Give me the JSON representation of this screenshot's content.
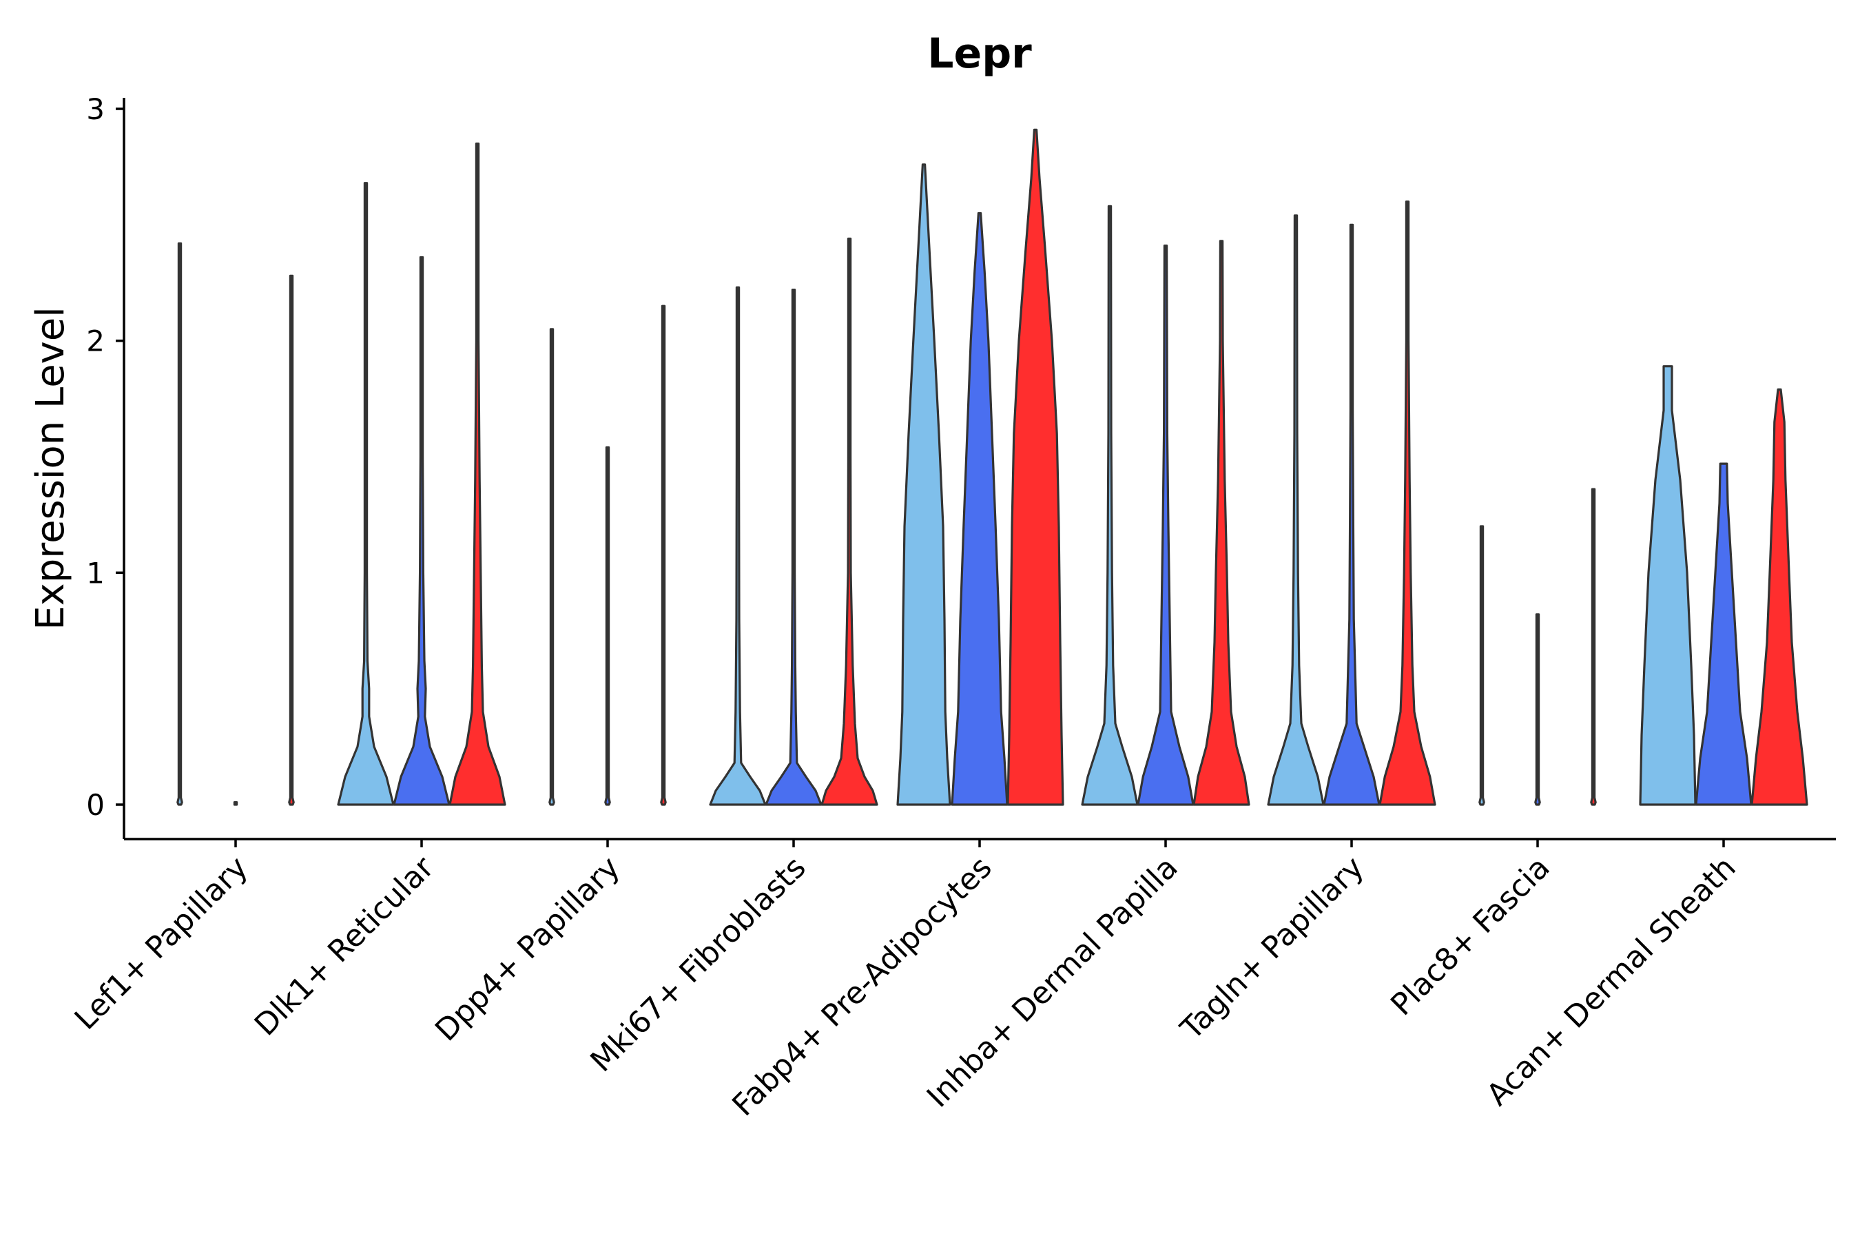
{
  "chart_data": {
    "type": "violin",
    "title": "Lepr",
    "ylabel": "Expression Level",
    "xlabel": "",
    "ylim": [
      -0.15,
      3.05
    ],
    "yticks": [
      0,
      1,
      2,
      3
    ],
    "grid": false,
    "legend": "none",
    "series_colors": [
      "#7fbfeb",
      "#4a6ff0",
      "#ff2e2e"
    ],
    "categories": [
      "Lef1+ Papillary",
      "Dlk1+ Reticular",
      "Dpp4+ Papillary",
      "Mki67+ Fibroblasts",
      "Fabp4+ Pre-Adipocytes",
      "Inhba+ Dermal Papilla",
      "Tagln+ Papillary",
      "Plac8+ Fascia",
      "Acan+ Dermal Sheath"
    ],
    "violins": [
      [
        {
          "max": 2.42,
          "profile": [
            [
              0,
              0.05
            ],
            [
              0.01,
              0.08
            ],
            [
              0.03,
              0.02
            ],
            [
              2.42,
              0.005
            ]
          ]
        },
        {
          "max": 0.01,
          "profile": [
            [
              0,
              0.02
            ],
            [
              0.01,
              0.005
            ]
          ]
        },
        {
          "max": 2.28,
          "profile": [
            [
              0,
              0.05
            ],
            [
              0.01,
              0.08
            ],
            [
              0.03,
              0.02
            ],
            [
              2.28,
              0.005
            ]
          ]
        }
      ],
      [
        {
          "max": 2.68,
          "profile": [
            [
              0,
              1
            ],
            [
              0.12,
              0.75
            ],
            [
              0.25,
              0.3
            ],
            [
              0.38,
              0.12
            ],
            [
              0.5,
              0.12
            ],
            [
              0.62,
              0.06
            ],
            [
              1,
              0.04
            ],
            [
              1.5,
              0.03
            ],
            [
              2.0,
              0.02
            ],
            [
              2.68,
              0.01
            ]
          ]
        },
        {
          "max": 2.36,
          "profile": [
            [
              0,
              1
            ],
            [
              0.12,
              0.75
            ],
            [
              0.25,
              0.3
            ],
            [
              0.38,
              0.12
            ],
            [
              0.5,
              0.15
            ],
            [
              0.62,
              0.1
            ],
            [
              1,
              0.06
            ],
            [
              1.5,
              0.04
            ],
            [
              2.0,
              0.02
            ],
            [
              2.36,
              0.01
            ]
          ]
        },
        {
          "max": 2.85,
          "profile": [
            [
              0,
              1
            ],
            [
              0.12,
              0.8
            ],
            [
              0.25,
              0.4
            ],
            [
              0.4,
              0.2
            ],
            [
              0.6,
              0.16
            ],
            [
              1,
              0.12
            ],
            [
              1.4,
              0.08
            ],
            [
              2.0,
              0.04
            ],
            [
              2.85,
              0.01
            ]
          ]
        }
      ],
      [
        {
          "max": 2.05,
          "profile": [
            [
              0,
              0.05
            ],
            [
              0.01,
              0.08
            ],
            [
              0.03,
              0.02
            ],
            [
              2.05,
              0.005
            ]
          ]
        },
        {
          "max": 1.54,
          "profile": [
            [
              0,
              0.05
            ],
            [
              0.01,
              0.08
            ],
            [
              0.03,
              0.02
            ],
            [
              1.54,
              0.005
            ]
          ]
        },
        {
          "max": 2.15,
          "profile": [
            [
              0,
              0.05
            ],
            [
              0.01,
              0.08
            ],
            [
              0.03,
              0.02
            ],
            [
              2.15,
              0.005
            ]
          ]
        }
      ],
      [
        {
          "max": 2.23,
          "profile": [
            [
              0,
              1
            ],
            [
              0.06,
              0.8
            ],
            [
              0.12,
              0.45
            ],
            [
              0.18,
              0.12
            ],
            [
              0.4,
              0.08
            ],
            [
              0.8,
              0.05
            ],
            [
              1.5,
              0.02
            ],
            [
              2.23,
              0.01
            ]
          ]
        },
        {
          "max": 2.22,
          "profile": [
            [
              0,
              1
            ],
            [
              0.06,
              0.8
            ],
            [
              0.12,
              0.45
            ],
            [
              0.18,
              0.12
            ],
            [
              0.4,
              0.08
            ],
            [
              0.6,
              0.06
            ],
            [
              1.0,
              0.03
            ],
            [
              2.22,
              0.01
            ]
          ]
        },
        {
          "max": 2.44,
          "profile": [
            [
              0,
              1
            ],
            [
              0.06,
              0.85
            ],
            [
              0.12,
              0.55
            ],
            [
              0.2,
              0.3
            ],
            [
              0.35,
              0.2
            ],
            [
              0.6,
              0.12
            ],
            [
              1.0,
              0.05
            ],
            [
              1.5,
              0.03
            ],
            [
              2.44,
              0.01
            ]
          ]
        }
      ],
      [
        {
          "max": 2.76,
          "profile": [
            [
              0,
              0.95
            ],
            [
              0.2,
              0.85
            ],
            [
              0.4,
              0.78
            ],
            [
              0.8,
              0.75
            ],
            [
              1.2,
              0.7
            ],
            [
              1.6,
              0.55
            ],
            [
              2.0,
              0.38
            ],
            [
              2.4,
              0.2
            ],
            [
              2.76,
              0.03
            ]
          ]
        },
        {
          "max": 2.55,
          "profile": [
            [
              0,
              1
            ],
            [
              0.2,
              0.9
            ],
            [
              0.4,
              0.78
            ],
            [
              0.8,
              0.7
            ],
            [
              1.2,
              0.58
            ],
            [
              1.6,
              0.45
            ],
            [
              2.0,
              0.32
            ],
            [
              2.3,
              0.18
            ],
            [
              2.55,
              0.03
            ]
          ]
        },
        {
          "max": 2.91,
          "profile": [
            [
              0,
              1
            ],
            [
              0.3,
              0.95
            ],
            [
              0.7,
              0.9
            ],
            [
              1.2,
              0.85
            ],
            [
              1.6,
              0.78
            ],
            [
              2.0,
              0.6
            ],
            [
              2.4,
              0.35
            ],
            [
              2.7,
              0.15
            ],
            [
              2.91,
              0.03
            ]
          ]
        }
      ],
      [
        {
          "max": 2.58,
          "profile": [
            [
              0,
              1
            ],
            [
              0.12,
              0.8
            ],
            [
              0.25,
              0.45
            ],
            [
              0.35,
              0.2
            ],
            [
              0.6,
              0.12
            ],
            [
              1.0,
              0.08
            ],
            [
              1.6,
              0.05
            ],
            [
              2.58,
              0.01
            ]
          ]
        },
        {
          "max": 2.41,
          "profile": [
            [
              0,
              1
            ],
            [
              0.12,
              0.82
            ],
            [
              0.25,
              0.5
            ],
            [
              0.4,
              0.2
            ],
            [
              0.8,
              0.15
            ],
            [
              1.2,
              0.1
            ],
            [
              1.6,
              0.06
            ],
            [
              2.41,
              0.01
            ]
          ]
        },
        {
          "max": 2.43,
          "profile": [
            [
              0,
              1
            ],
            [
              0.12,
              0.85
            ],
            [
              0.25,
              0.55
            ],
            [
              0.4,
              0.35
            ],
            [
              0.7,
              0.25
            ],
            [
              1.0,
              0.2
            ],
            [
              1.4,
              0.12
            ],
            [
              2.0,
              0.05
            ],
            [
              2.43,
              0.01
            ]
          ]
        }
      ],
      [
        {
          "max": 2.54,
          "profile": [
            [
              0,
              1
            ],
            [
              0.12,
              0.8
            ],
            [
              0.25,
              0.45
            ],
            [
              0.35,
              0.2
            ],
            [
              0.6,
              0.12
            ],
            [
              1.0,
              0.08
            ],
            [
              1.6,
              0.05
            ],
            [
              2.54,
              0.01
            ]
          ]
        },
        {
          "max": 2.5,
          "profile": [
            [
              0,
              1
            ],
            [
              0.12,
              0.8
            ],
            [
              0.25,
              0.45
            ],
            [
              0.35,
              0.18
            ],
            [
              0.8,
              0.08
            ],
            [
              1.2,
              0.06
            ],
            [
              1.7,
              0.04
            ],
            [
              2.5,
              0.01
            ]
          ]
        },
        {
          "max": 2.6,
          "profile": [
            [
              0,
              1
            ],
            [
              0.12,
              0.82
            ],
            [
              0.25,
              0.5
            ],
            [
              0.4,
              0.25
            ],
            [
              0.6,
              0.18
            ],
            [
              1.0,
              0.12
            ],
            [
              1.4,
              0.08
            ],
            [
              2.0,
              0.04
            ],
            [
              2.6,
              0.01
            ]
          ]
        }
      ],
      [
        {
          "max": 1.2,
          "profile": [
            [
              0,
              0.05
            ],
            [
              0.01,
              0.08
            ],
            [
              0.03,
              0.02
            ],
            [
              1.2,
              0.005
            ]
          ]
        },
        {
          "max": 0.82,
          "profile": [
            [
              0,
              0.05
            ],
            [
              0.01,
              0.08
            ],
            [
              0.03,
              0.02
            ],
            [
              0.82,
              0.005
            ]
          ]
        },
        {
          "max": 1.36,
          "profile": [
            [
              0,
              0.05
            ],
            [
              0.01,
              0.08
            ],
            [
              0.03,
              0.02
            ],
            [
              1.36,
              0.005
            ]
          ]
        }
      ],
      [
        {
          "max": 1.89,
          "profile": [
            [
              0,
              1
            ],
            [
              0.3,
              0.95
            ],
            [
              0.6,
              0.85
            ],
            [
              1.0,
              0.7
            ],
            [
              1.4,
              0.45
            ],
            [
              1.7,
              0.15
            ],
            [
              1.89,
              0.15
            ]
          ]
        },
        {
          "max": 1.47,
          "profile": [
            [
              0,
              1
            ],
            [
              0.2,
              0.85
            ],
            [
              0.4,
              0.6
            ],
            [
              0.7,
              0.45
            ],
            [
              1.0,
              0.3
            ],
            [
              1.3,
              0.15
            ],
            [
              1.47,
              0.12
            ]
          ]
        },
        {
          "max": 1.79,
          "profile": [
            [
              0,
              1
            ],
            [
              0.2,
              0.85
            ],
            [
              0.4,
              0.65
            ],
            [
              0.7,
              0.45
            ],
            [
              1.0,
              0.35
            ],
            [
              1.4,
              0.22
            ],
            [
              1.65,
              0.18
            ],
            [
              1.79,
              0.05
            ]
          ]
        }
      ]
    ]
  }
}
